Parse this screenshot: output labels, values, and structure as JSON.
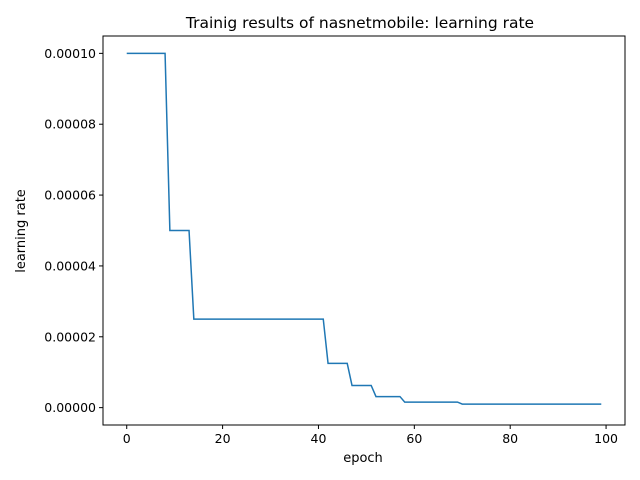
{
  "chart_data": {
    "type": "line",
    "title": "Trainig results of nasnetmobile: learning rate",
    "xlabel": "epoch",
    "ylabel": "learning rate",
    "xlim": [
      -4.95,
      103.95
    ],
    "ylim": [
      -4.9e-06,
      0.0001049
    ],
    "xticks": [
      0,
      20,
      40,
      60,
      80,
      100
    ],
    "xtick_labels": [
      "0",
      "20",
      "40",
      "60",
      "80",
      "100"
    ],
    "yticks": [
      0.0,
      2e-05,
      4e-05,
      6e-05,
      8e-05,
      0.0001
    ],
    "ytick_labels": [
      "0.00000",
      "0.00002",
      "0.00004",
      "0.00006",
      "0.00008",
      "0.00010"
    ],
    "grid": false,
    "legend": "none",
    "colors": {
      "line": "#1f77b4"
    },
    "series": [
      {
        "x": [
          0,
          8,
          9,
          13,
          14,
          41,
          42,
          46,
          47,
          51,
          52,
          57,
          58,
          69,
          70,
          99
        ],
        "y": [
          0.0001,
          0.0001,
          5e-05,
          5e-05,
          2.5e-05,
          2.5e-05,
          1.25e-05,
          1.25e-05,
          6.25e-06,
          6.25e-06,
          3.125e-06,
          3.125e-06,
          1.5625e-06,
          1.5625e-06,
          1e-06,
          1e-06
        ]
      }
    ]
  }
}
